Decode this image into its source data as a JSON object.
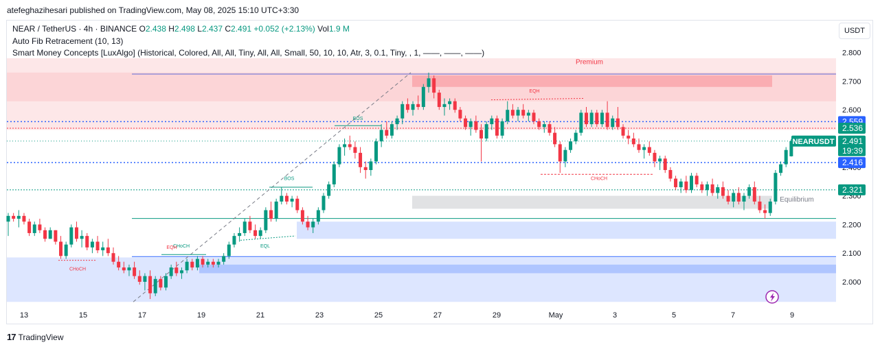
{
  "publisher": {
    "text": "atefeghazihesari published on TradingView.com, May 08, 2025 15:10 UTC+3:30"
  },
  "legend": {
    "symbol": "NEAR / TetherUS · 4h · BINANCE",
    "o_label": "O",
    "o": "2.438",
    "h_label": "H",
    "h": "2.498",
    "l_label": "L",
    "l": "2.437",
    "c_label": "C",
    "c": "2.491",
    "change": "+0.052 (+2.13%)",
    "vol_label": "Vol",
    "vol": "1.9 M",
    "indicator1": "Auto Fib Retracement (10, 13)",
    "indicator2": "Smart Money Concepts [LuxAlgo] (Historical, Colored, All, All, Tiny, All, All, Small, 50, 10, 10, Atr, 3, 0.1, Tiny, , 1, ——, ——, ——)"
  },
  "unit_button": "USDT",
  "footer": {
    "brand": "TradingView",
    "logo": "17"
  },
  "colors": {
    "up": "#089981",
    "down": "#f23645",
    "blue_line": "#2962ff",
    "premium": "#f23645",
    "discount": "#2962ff"
  },
  "icons": {
    "flash": "lightning-icon",
    "logo": "tradingview-logo-icon"
  },
  "chart_data": {
    "type": "candlestick",
    "ylim": [
      1.93,
      2.8
    ],
    "y_ticks": [
      "2.800",
      "2.700",
      "2.600",
      "2.500",
      "2.400",
      "2.300",
      "2.200",
      "2.100",
      "2.000"
    ],
    "y_tick_values": [
      2.8,
      2.7,
      2.6,
      2.5,
      2.4,
      2.3,
      2.2,
      2.1,
      2.0
    ],
    "x_ticks": [
      "13",
      "15",
      "17",
      "19",
      "21",
      "23",
      "25",
      "27",
      "29",
      "May",
      "3",
      "5",
      "7",
      "9"
    ],
    "x_tick_days": [
      0,
      2,
      4,
      6,
      8,
      10,
      12,
      14,
      16,
      18,
      20,
      22,
      24,
      26
    ],
    "price_labels": [
      {
        "value": 2.559,
        "text": "2.559",
        "color": "#2962ff"
      },
      {
        "value": 2.536,
        "text": "2.536",
        "color": "#089981"
      },
      {
        "value": 2.491,
        "text": "2.491",
        "color": "#089981"
      },
      {
        "value": 2.416,
        "text": "2.416",
        "color": "#2962ff"
      },
      {
        "value": 2.321,
        "text": "2.321",
        "color": "#089981"
      }
    ],
    "symbol_label": "NEARUSDT",
    "countdown": "19:39",
    "annotations": [
      "Premium",
      "Equilibrium",
      "EQH",
      "EQL",
      "BOS",
      "CHoCH"
    ],
    "candles": [
      [
        2.21,
        2.24,
        2.16,
        2.23
      ],
      [
        2.23,
        2.24,
        2.21,
        2.22
      ],
      [
        2.22,
        2.25,
        2.19,
        2.23
      ],
      [
        2.23,
        2.24,
        2.2,
        2.21
      ],
      [
        2.21,
        2.22,
        2.16,
        2.17
      ],
      [
        2.17,
        2.21,
        2.16,
        2.2
      ],
      [
        2.2,
        2.22,
        2.17,
        2.18
      ],
      [
        2.18,
        2.19,
        2.14,
        2.15
      ],
      [
        2.15,
        2.19,
        2.15,
        2.18
      ],
      [
        2.18,
        2.18,
        2.13,
        2.14
      ],
      [
        2.14,
        2.16,
        2.08,
        2.09
      ],
      [
        2.09,
        2.14,
        2.08,
        2.13
      ],
      [
        2.13,
        2.2,
        2.12,
        2.19
      ],
      [
        2.19,
        2.21,
        2.14,
        2.15
      ],
      [
        2.15,
        2.18,
        2.12,
        2.16
      ],
      [
        2.16,
        2.17,
        2.11,
        2.12
      ],
      [
        2.12,
        2.15,
        2.1,
        2.14
      ],
      [
        2.14,
        2.16,
        2.1,
        2.11
      ],
      [
        2.11,
        2.14,
        2.09,
        2.12
      ],
      [
        2.12,
        2.15,
        2.09,
        2.1
      ],
      [
        2.1,
        2.12,
        2.06,
        2.07
      ],
      [
        2.07,
        2.09,
        2.04,
        2.05
      ],
      [
        2.05,
        2.07,
        2.03,
        2.04
      ],
      [
        2.04,
        2.06,
        2.02,
        2.05
      ],
      [
        2.05,
        2.07,
        2.01,
        2.02
      ],
      [
        2.02,
        2.04,
        1.99,
        2.0
      ],
      [
        2.0,
        2.03,
        1.97,
        2.02
      ],
      [
        2.02,
        2.04,
        1.94,
        1.96
      ],
      [
        1.96,
        2.02,
        1.95,
        2.01
      ],
      [
        2.01,
        2.02,
        1.97,
        1.98
      ],
      [
        1.98,
        2.03,
        1.97,
        2.02
      ],
      [
        2.02,
        2.06,
        2.01,
        2.05
      ],
      [
        2.05,
        2.07,
        2.02,
        2.03
      ],
      [
        2.03,
        2.05,
        2.01,
        2.04
      ],
      [
        2.04,
        2.08,
        2.03,
        2.07
      ],
      [
        2.07,
        2.08,
        2.04,
        2.05
      ],
      [
        2.05,
        2.09,
        2.04,
        2.08
      ],
      [
        2.08,
        2.09,
        2.05,
        2.06
      ],
      [
        2.06,
        2.08,
        2.05,
        2.07
      ],
      [
        2.07,
        2.08,
        2.05,
        2.06
      ],
      [
        2.06,
        2.08,
        2.05,
        2.07
      ],
      [
        2.07,
        2.1,
        2.06,
        2.09
      ],
      [
        2.09,
        2.14,
        2.08,
        2.13
      ],
      [
        2.13,
        2.17,
        2.12,
        2.16
      ],
      [
        2.16,
        2.19,
        2.14,
        2.17
      ],
      [
        2.17,
        2.22,
        2.16,
        2.21
      ],
      [
        2.21,
        2.23,
        2.17,
        2.18
      ],
      [
        2.18,
        2.2,
        2.15,
        2.16
      ],
      [
        2.16,
        2.19,
        2.15,
        2.18
      ],
      [
        2.18,
        2.26,
        2.17,
        2.25
      ],
      [
        2.25,
        2.28,
        2.21,
        2.22
      ],
      [
        2.22,
        2.29,
        2.21,
        2.28
      ],
      [
        2.28,
        2.33,
        2.27,
        2.3
      ],
      [
        2.3,
        2.31,
        2.27,
        2.28
      ],
      [
        2.28,
        2.3,
        2.26,
        2.29
      ],
      [
        2.29,
        2.3,
        2.24,
        2.25
      ],
      [
        2.25,
        2.26,
        2.2,
        2.21
      ],
      [
        2.21,
        2.23,
        2.18,
        2.19
      ],
      [
        2.19,
        2.22,
        2.17,
        2.21
      ],
      [
        2.21,
        2.26,
        2.2,
        2.25
      ],
      [
        2.25,
        2.31,
        2.24,
        2.3
      ],
      [
        2.3,
        2.35,
        2.29,
        2.34
      ],
      [
        2.34,
        2.42,
        2.33,
        2.41
      ],
      [
        2.41,
        2.48,
        2.4,
        2.47
      ],
      [
        2.47,
        2.5,
        2.44,
        2.48
      ],
      [
        2.48,
        2.51,
        2.46,
        2.47
      ],
      [
        2.47,
        2.49,
        2.43,
        2.45
      ],
      [
        2.45,
        2.47,
        2.38,
        2.4
      ],
      [
        2.4,
        2.42,
        2.36,
        2.39
      ],
      [
        2.39,
        2.43,
        2.37,
        2.42
      ],
      [
        2.42,
        2.5,
        2.41,
        2.49
      ],
      [
        2.49,
        2.55,
        2.47,
        2.53
      ],
      [
        2.53,
        2.56,
        2.5,
        2.51
      ],
      [
        2.51,
        2.56,
        2.5,
        2.55
      ],
      [
        2.55,
        2.58,
        2.53,
        2.57
      ],
      [
        2.57,
        2.63,
        2.55,
        2.62
      ],
      [
        2.62,
        2.64,
        2.59,
        2.6
      ],
      [
        2.6,
        2.63,
        2.58,
        2.62
      ],
      [
        2.62,
        2.65,
        2.6,
        2.61
      ],
      [
        2.61,
        2.69,
        2.6,
        2.68
      ],
      [
        2.68,
        2.73,
        2.66,
        2.71
      ],
      [
        2.71,
        2.72,
        2.64,
        2.66
      ],
      [
        2.66,
        2.67,
        2.6,
        2.61
      ],
      [
        2.61,
        2.64,
        2.58,
        2.62
      ],
      [
        2.62,
        2.64,
        2.6,
        2.63
      ],
      [
        2.63,
        2.64,
        2.59,
        2.6
      ],
      [
        2.6,
        2.61,
        2.56,
        2.57
      ],
      [
        2.57,
        2.58,
        2.53,
        2.54
      ],
      [
        2.54,
        2.57,
        2.51,
        2.56
      ],
      [
        2.56,
        2.58,
        2.52,
        2.53
      ],
      [
        2.53,
        2.55,
        2.42,
        2.5
      ],
      [
        2.5,
        2.56,
        2.49,
        2.55
      ],
      [
        2.55,
        2.58,
        2.53,
        2.57
      ],
      [
        2.57,
        2.58,
        2.5,
        2.51
      ],
      [
        2.51,
        2.57,
        2.5,
        2.56
      ],
      [
        2.56,
        2.63,
        2.55,
        2.6
      ],
      [
        2.6,
        2.62,
        2.57,
        2.58
      ],
      [
        2.58,
        2.61,
        2.56,
        2.6
      ],
      [
        2.6,
        2.62,
        2.57,
        2.58
      ],
      [
        2.58,
        2.6,
        2.56,
        2.59
      ],
      [
        2.59,
        2.6,
        2.55,
        2.56
      ],
      [
        2.56,
        2.57,
        2.53,
        2.54
      ],
      [
        2.54,
        2.56,
        2.52,
        2.55
      ],
      [
        2.55,
        2.56,
        2.51,
        2.52
      ],
      [
        2.52,
        2.54,
        2.47,
        2.48
      ],
      [
        2.48,
        2.49,
        2.38,
        2.42
      ],
      [
        2.42,
        2.47,
        2.4,
        2.46
      ],
      [
        2.46,
        2.5,
        2.45,
        2.49
      ],
      [
        2.49,
        2.53,
        2.48,
        2.52
      ],
      [
        2.52,
        2.6,
        2.51,
        2.59
      ],
      [
        2.59,
        2.61,
        2.54,
        2.55
      ],
      [
        2.55,
        2.6,
        2.54,
        2.59
      ],
      [
        2.59,
        2.6,
        2.54,
        2.55
      ],
      [
        2.55,
        2.6,
        2.54,
        2.59
      ],
      [
        2.59,
        2.63,
        2.53,
        2.54
      ],
      [
        2.54,
        2.58,
        2.53,
        2.57
      ],
      [
        2.57,
        2.61,
        2.53,
        2.54
      ],
      [
        2.54,
        2.55,
        2.5,
        2.51
      ],
      [
        2.51,
        2.53,
        2.48,
        2.5
      ],
      [
        2.5,
        2.52,
        2.47,
        2.48
      ],
      [
        2.48,
        2.5,
        2.45,
        2.46
      ],
      [
        2.46,
        2.48,
        2.43,
        2.47
      ],
      [
        2.47,
        2.49,
        2.44,
        2.45
      ],
      [
        2.45,
        2.46,
        2.4,
        2.42
      ],
      [
        2.42,
        2.44,
        2.39,
        2.43
      ],
      [
        2.43,
        2.44,
        2.38,
        2.39
      ],
      [
        2.39,
        2.4,
        2.35,
        2.36
      ],
      [
        2.36,
        2.37,
        2.32,
        2.33
      ],
      [
        2.33,
        2.36,
        2.31,
        2.35
      ],
      [
        2.35,
        2.37,
        2.31,
        2.32
      ],
      [
        2.32,
        2.38,
        2.31,
        2.37
      ],
      [
        2.37,
        2.38,
        2.33,
        2.34
      ],
      [
        2.34,
        2.35,
        2.31,
        2.32
      ],
      [
        2.32,
        2.35,
        2.3,
        2.34
      ],
      [
        2.34,
        2.36,
        2.3,
        2.31
      ],
      [
        2.31,
        2.34,
        2.29,
        2.33
      ],
      [
        2.33,
        2.35,
        2.29,
        2.3
      ],
      [
        2.3,
        2.32,
        2.27,
        2.28
      ],
      [
        2.28,
        2.32,
        2.26,
        2.31
      ],
      [
        2.31,
        2.33,
        2.27,
        2.28
      ],
      [
        2.28,
        2.31,
        2.25,
        2.3
      ],
      [
        2.3,
        2.34,
        2.29,
        2.33
      ],
      [
        2.33,
        2.35,
        2.27,
        2.28
      ],
      [
        2.28,
        2.3,
        2.24,
        2.25
      ],
      [
        2.25,
        2.27,
        2.22,
        2.24
      ],
      [
        2.24,
        2.29,
        2.23,
        2.28
      ],
      [
        2.28,
        2.39,
        2.27,
        2.38
      ],
      [
        2.38,
        2.42,
        2.37,
        2.41
      ],
      [
        2.41,
        2.47,
        2.4,
        2.46
      ],
      [
        2.438,
        2.498,
        2.437,
        2.491
      ]
    ]
  }
}
